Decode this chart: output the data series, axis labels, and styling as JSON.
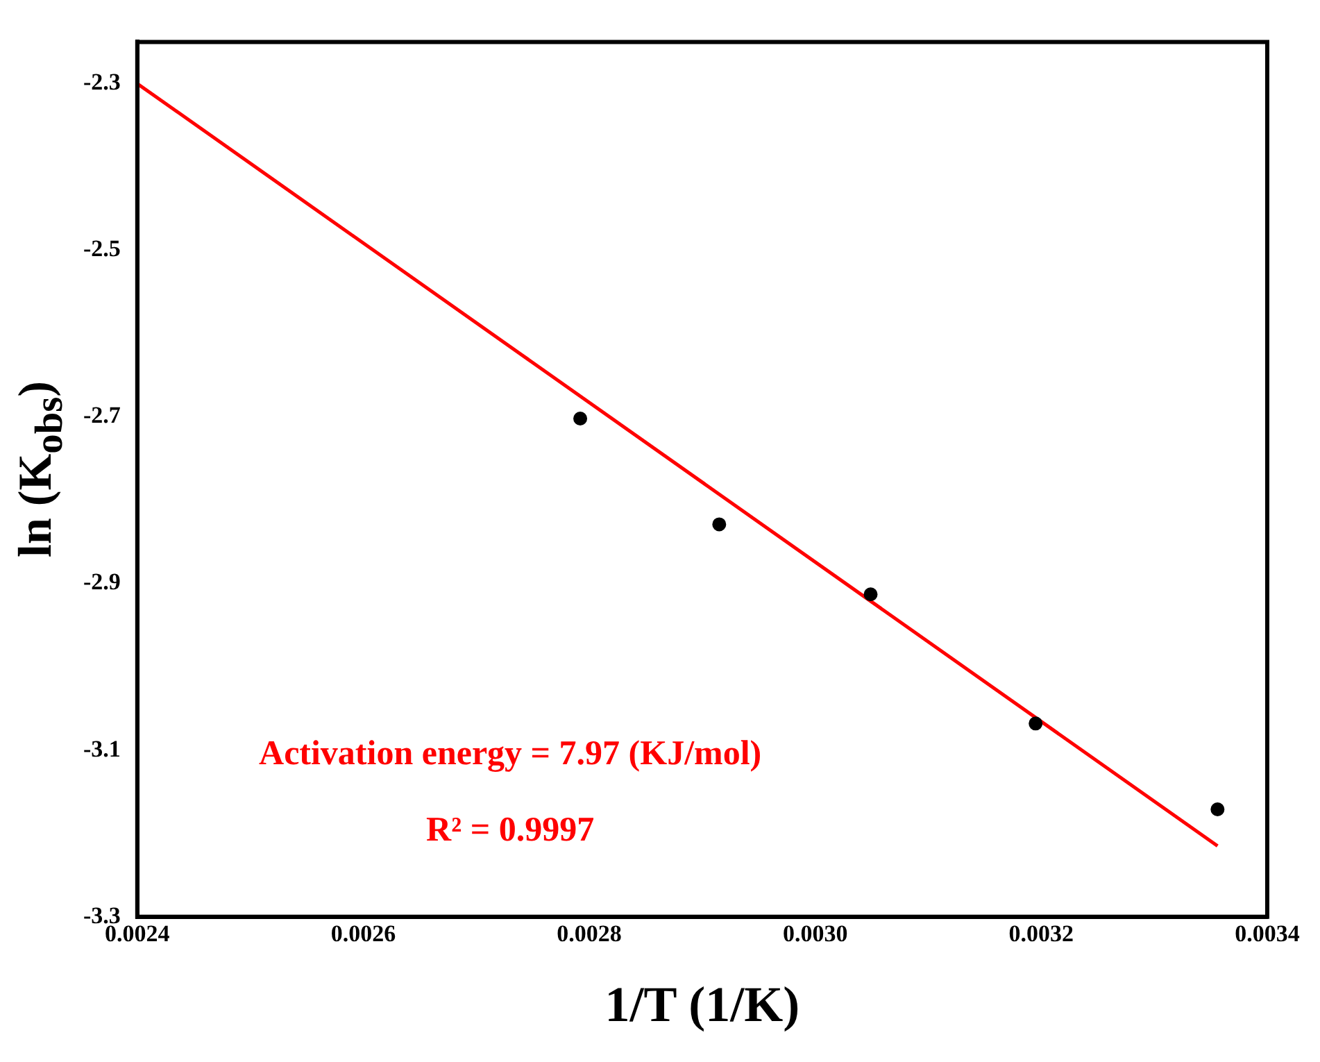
{
  "chart_data": {
    "type": "scatter",
    "xlabel": "1/T (1/K)",
    "ylabel": "ln (K$_{obs}$)",
    "annotations": [
      "Activation energy = 7.97 (KJ/mol)",
      "R² = 0.9997"
    ],
    "series": [
      {
        "type": "scatter",
        "color": "#000000",
        "x": [
          0.002792,
          0.002915,
          0.003049,
          0.003195,
          0.003356
        ],
        "values": [
          -2.702,
          -2.829,
          -2.913,
          -3.068,
          -3.171
        ],
        "marker": "circle"
      },
      {
        "type": "line",
        "color": "#ff0000",
        "x": [
          0.0024,
          0.003356
        ],
        "values": [
          -2.3,
          -3.215
        ],
        "marker": "none",
        "line_style": "solid"
      }
    ],
    "xlim": [
      0.0024,
      0.0034
    ],
    "xticks": [
      {
        "value": 0.0024,
        "label": "0.0024"
      },
      {
        "value": 0.0026,
        "label": "0.0026"
      },
      {
        "value": 0.0028,
        "label": "0.0028"
      },
      {
        "value": 0.003,
        "label": "0.0030"
      },
      {
        "value": 0.0032,
        "label": "0.0032"
      },
      {
        "value": 0.0034,
        "label": "0.0034"
      }
    ],
    "ylim": [
      -3.3,
      -2.25
    ],
    "yticks": [
      -3.3,
      -3.1,
      -2.9,
      -2.7,
      -2.5,
      -2.3
    ],
    "grid": false,
    "legend": false
  }
}
